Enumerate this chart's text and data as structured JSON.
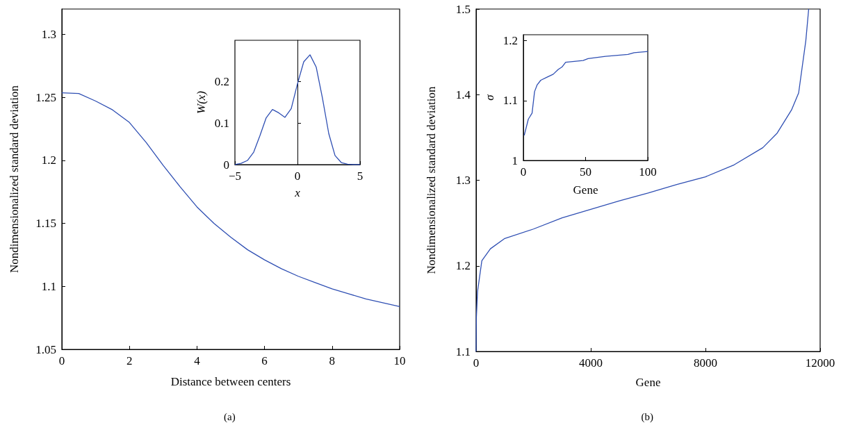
{
  "chart_data": [
    {
      "type": "line",
      "xlabel": "Distance between centers",
      "ylabel": "Nondimensionalized standard deviation",
      "color": "#2f4fb3",
      "marker": "none",
      "annotations": [
        "(a)"
      ],
      "x": [
        0,
        0.5,
        1,
        1.5,
        2,
        2.5,
        3,
        3.5,
        4,
        4.5,
        5,
        5.5,
        6,
        6.5,
        7,
        7.5,
        8,
        8.5,
        9,
        9.5,
        10
      ],
      "values": [
        1.2535,
        1.253,
        1.247,
        1.24,
        1.23,
        1.214,
        1.196,
        1.179,
        1.163,
        1.15,
        1.139,
        1.129,
        1.121,
        1.114,
        1.108,
        1.103,
        1.098,
        1.094,
        1.09,
        1.087,
        1.084
      ],
      "xlim": [
        0,
        10
      ],
      "xticks": [
        0,
        2,
        4,
        6,
        8,
        10
      ],
      "ylim": [
        1.05,
        1.32
      ],
      "yticks": [
        1.05,
        1.1,
        1.15,
        1.2,
        1.25,
        1.3
      ]
    },
    {
      "type": "line",
      "xlabel": "x",
      "ylabel": "W(x)",
      "color": "#2f4fb3",
      "marker": "none",
      "x": [
        -5,
        -4.5,
        -4,
        -3.5,
        -3,
        -2.5,
        -2,
        -1.5,
        -1,
        -0.5,
        0,
        0.5,
        1,
        1.5,
        2,
        2.5,
        3,
        3.5,
        4,
        4.5,
        5
      ],
      "values": [
        0,
        0.003,
        0.01,
        0.03,
        0.07,
        0.113,
        0.133,
        0.125,
        0.114,
        0.135,
        0.195,
        0.248,
        0.265,
        0.235,
        0.16,
        0.075,
        0.022,
        0.005,
        0.001,
        0,
        0
      ],
      "xlim": [
        -5,
        5
      ],
      "xticks": [
        {
          "value": -5,
          "label": "−5"
        },
        0,
        5
      ],
      "ylim": [
        0,
        0.3
      ],
      "yticks": [
        0,
        0.1,
        0.2
      ]
    },
    {
      "type": "line",
      "xlabel": "Gene",
      "ylabel": "Nondimensionalized standard deviation",
      "color": "#2f4fb3",
      "marker": "none",
      "annotations": [
        "(b)"
      ],
      "x": [
        0,
        10,
        50,
        200,
        500,
        1000,
        2000,
        3000,
        4000,
        5000,
        6000,
        7000,
        8000,
        9000,
        10000,
        10500,
        11000,
        11250,
        11500,
        11600
      ],
      "values": [
        1.1,
        1.14,
        1.17,
        1.206,
        1.22,
        1.232,
        1.243,
        1.256,
        1.266,
        1.276,
        1.285,
        1.295,
        1.304,
        1.318,
        1.338,
        1.355,
        1.382,
        1.402,
        1.463,
        1.5
      ],
      "xlim": [
        0,
        12000
      ],
      "xticks": [
        0,
        4000,
        8000,
        12000
      ],
      "ylim": [
        1.1,
        1.5
      ],
      "yticks": [
        1.1,
        1.2,
        1.3,
        1.4,
        1.5
      ]
    },
    {
      "type": "line",
      "xlabel": "Gene",
      "ylabel": "σ",
      "color": "#2f4fb3",
      "marker": "none",
      "x": [
        0.7,
        4,
        7,
        9,
        11,
        14,
        19,
        24,
        28,
        31,
        34,
        48,
        52,
        66,
        84,
        89,
        100
      ],
      "values": [
        1.042,
        1.069,
        1.079,
        1.115,
        1.126,
        1.134,
        1.139,
        1.144,
        1.152,
        1.156,
        1.164,
        1.167,
        1.17,
        1.174,
        1.177,
        1.18,
        1.182
      ],
      "xlim": [
        0,
        100
      ],
      "xticks": [
        0,
        50,
        100
      ],
      "ylim": [
        1,
        1.21
      ],
      "yticks": [
        1,
        1.1,
        1.2
      ]
    }
  ]
}
